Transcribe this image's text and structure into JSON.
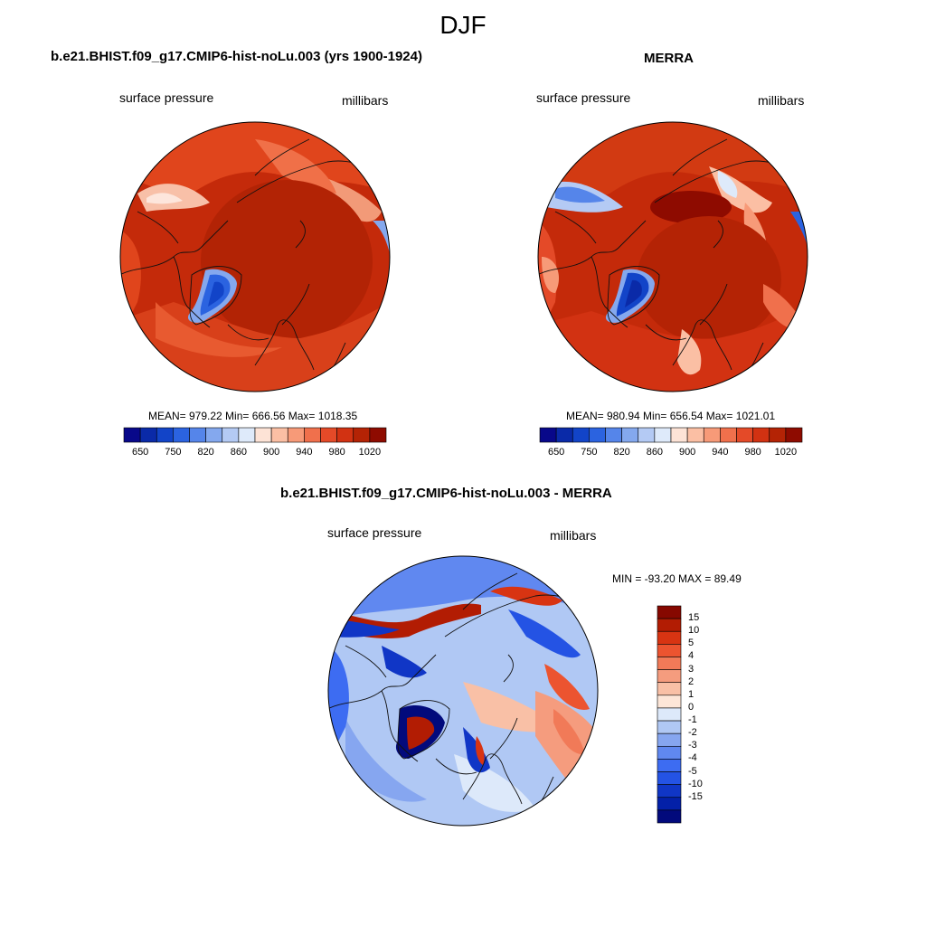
{
  "figure": {
    "title": "DJF"
  },
  "colors": {
    "abs_scale": [
      "#08088a",
      "#0a2aa8",
      "#1244c8",
      "#2b63e0",
      "#5585ea",
      "#84a8ee",
      "#b4caf4",
      "#deeafa",
      "#fde3d6",
      "#fbbfa4",
      "#f79a78",
      "#f0704c",
      "#e44a28",
      "#d23212",
      "#b42305",
      "#8e0b00"
    ],
    "diff_scale": [
      "#020a7c",
      "#0320a8",
      "#1036c6",
      "#2453e4",
      "#3d6cf2",
      "#6088f0",
      "#86a6f0",
      "#b0c8f4",
      "#dde9fa",
      "#fde6d8",
      "#f9c0a6",
      "#f59c7e",
      "#f17a58",
      "#ec5430",
      "#d83412",
      "#b21c03",
      "#860800"
    ],
    "land_outline": "#111111"
  },
  "panels": {
    "model": {
      "title": "b.e21.BHIST.f09_g17.CMIP6-hist-noLu.003 (yrs 1900-1924)",
      "left_label": "surface pressure",
      "right_label": "millibars",
      "stats": "MEAN= 979.22  Min= 666.56  Max= 1018.35",
      "colorbar_ticks": [
        "650",
        "750",
        "820",
        "860",
        "900",
        "940",
        "980",
        "1020"
      ]
    },
    "obs": {
      "title": "MERRA",
      "left_label": "surface pressure",
      "right_label": "millibars",
      "stats": "MEAN= 980.94  Min= 656.54  Max= 1021.01",
      "colorbar_ticks": [
        "650",
        "750",
        "820",
        "860",
        "900",
        "940",
        "980",
        "1020"
      ]
    },
    "diff": {
      "title": "b.e21.BHIST.f09_g17.CMIP6-hist-noLu.003 - MERRA",
      "left_label": "surface pressure",
      "right_label": "millibars",
      "stats": "MIN = -93.20 MAX =  89.49",
      "colorbar_ticks": [
        "15",
        "10",
        "5",
        "4",
        "3",
        "2",
        "1",
        "0",
        "-1",
        "-2",
        "-3",
        "-4",
        "-5",
        "-10",
        "-15"
      ]
    }
  }
}
